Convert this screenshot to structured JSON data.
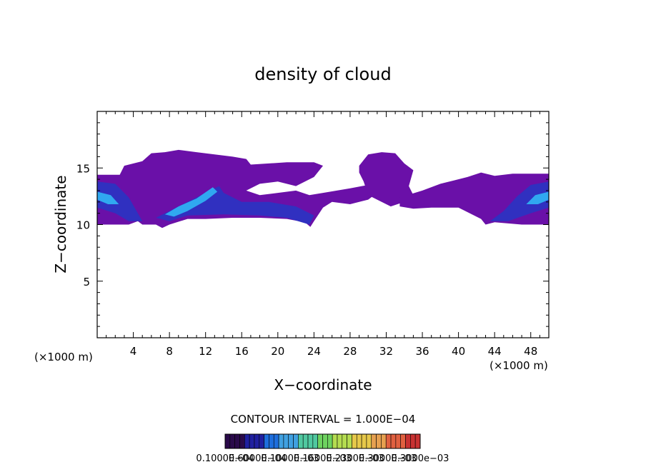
{
  "chart_data": {
    "type": "heatmap",
    "title": "density of cloud",
    "xlabel": "X−coordinate",
    "ylabel": "Z−coordinate",
    "x_unit_left": "(×1000 m)",
    "x_unit_right": "(×1000 m)",
    "xlim": [
      0,
      50
    ],
    "ylim": [
      0,
      20
    ],
    "x_ticks": [
      4,
      8,
      12,
      16,
      20,
      24,
      28,
      32,
      36,
      40,
      44,
      48
    ],
    "y_ticks": [
      5,
      10,
      15
    ],
    "grid": false,
    "contour_interval": "CONTOUR INTERVAL = 1.000E−04",
    "colorbar_labels": [
      "0.1000E−04",
      "0.6000E−04",
      "0.1000E−03",
      "0.1600E−03",
      "0.2300E−03",
      "0.3000E−03",
      "0.3000e−03"
    ],
    "colorbar_colors": [
      "#2a0a4a",
      "#2020a0",
      "#1e6edc",
      "#40a0e0",
      "#50c8a0",
      "#6ed260",
      "#b4dc50",
      "#e6c84a",
      "#e6a050",
      "#e06040",
      "#c83232"
    ],
    "fill_color_low": "#6a10a8",
    "fill_color_mid": "#3030c0",
    "fill_color_high": "#30a8f0",
    "cloud_layer": {
      "z_bottom": 10,
      "z_top": 16.5
    }
  }
}
